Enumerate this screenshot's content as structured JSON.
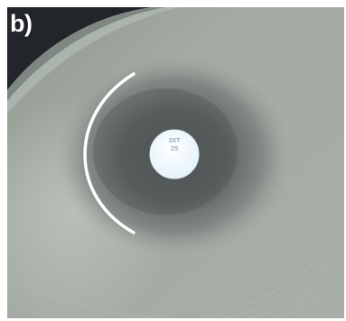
{
  "panel_label": "b)",
  "disc": {
    "line1": "SXT",
    "line2": "25"
  },
  "colors": {
    "agar": "#9ea6a0",
    "inhibition_zone": "#5a6260",
    "disc": "#f4fbff",
    "marker_arc": "#ffffff",
    "plate_rim": "#1c1e1f"
  },
  "icons": {
    "inhibition-zone-marker": "white-arc"
  }
}
